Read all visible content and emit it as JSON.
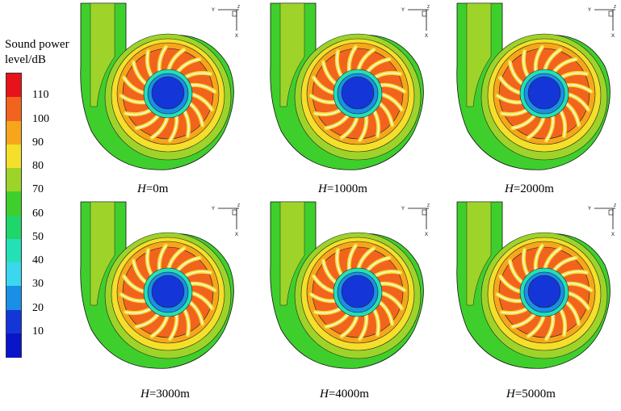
{
  "legend": {
    "title_line1": "Sound power",
    "title_line2": "level/dB",
    "ticks": [
      "110",
      "100",
      "90",
      "80",
      "70",
      "60",
      "50",
      "40",
      "30",
      "20",
      "10"
    ],
    "colors": [
      "#e8121a",
      "#f2641e",
      "#f7a61c",
      "#f4df2a",
      "#9ed42a",
      "#3fcf2c",
      "#1fd66a",
      "#23e0b7",
      "#3ad7ee",
      "#1a8fe6",
      "#1436d8",
      "#0a14c8"
    ]
  },
  "axis_triad": {
    "y": "Y",
    "z": "Z",
    "x": "X"
  },
  "panels": [
    {
      "caption_var": "H",
      "caption_val": "=0m"
    },
    {
      "caption_var": "H",
      "caption_val": "=1000m"
    },
    {
      "caption_var": "H",
      "caption_val": "=2000m"
    },
    {
      "caption_var": "H",
      "caption_val": "=3000m"
    },
    {
      "caption_var": "H",
      "caption_val": "=4000m"
    },
    {
      "caption_var": "H",
      "caption_val": "=5000m"
    }
  ]
}
